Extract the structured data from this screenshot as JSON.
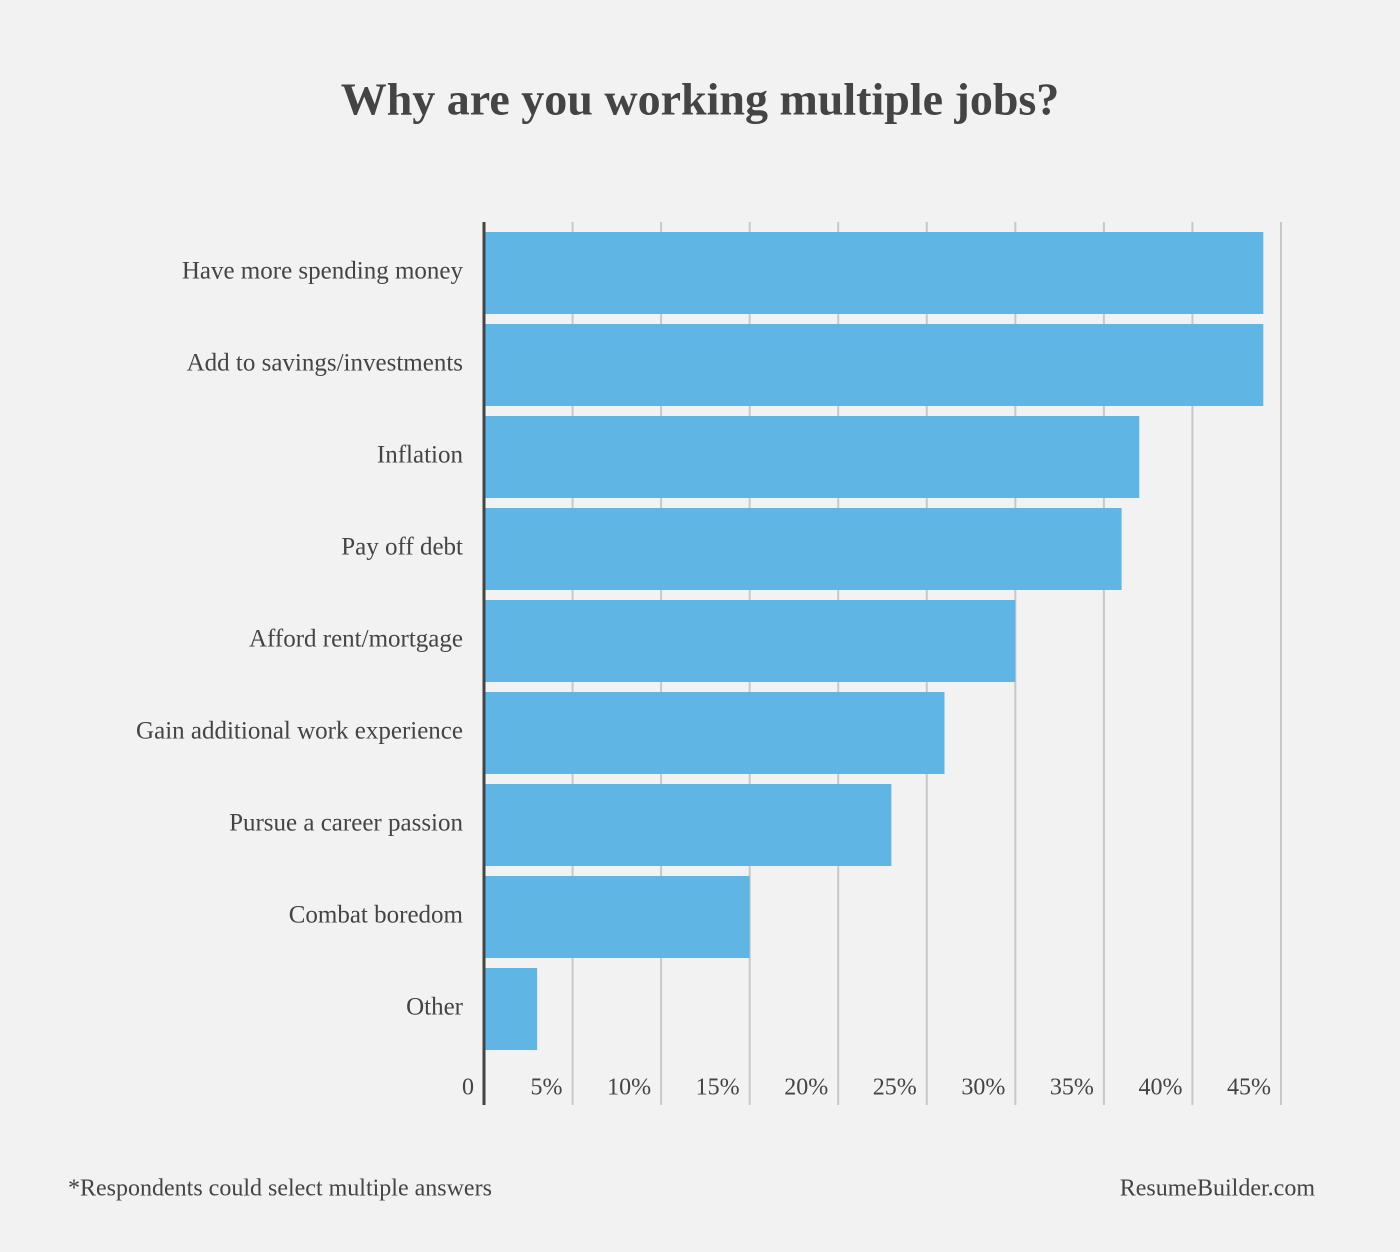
{
  "chart_data": {
    "type": "hbar",
    "title": "Why are you working multiple jobs?",
    "categories": [
      "Have more spending money",
      "Add to savings/investments",
      "Inflation",
      "Pay off debt",
      "Afford rent/mortgage",
      "Gain additional work experience",
      "Pursue a career passion",
      "Combat boredom",
      "Other"
    ],
    "values": [
      44,
      44,
      37,
      36,
      30,
      26,
      23,
      15,
      3
    ],
    "color": "#5fb6e4",
    "xlim": [
      0,
      45
    ],
    "xticks": [
      0,
      {
        "value": 5,
        "label": "5%"
      },
      {
        "value": 10,
        "label": "10%"
      },
      {
        "value": 15,
        "label": "15%"
      },
      {
        "value": 20,
        "label": "20%"
      },
      {
        "value": 25,
        "label": "25%"
      },
      {
        "value": 30,
        "label": "30%"
      },
      {
        "value": 35,
        "label": "35%"
      },
      {
        "value": 40,
        "label": "40%"
      },
      {
        "value": 45,
        "label": "45%"
      }
    ],
    "grid": true,
    "footnote": "*Respondents could select multiple answers",
    "source": "ResumeBuilder.com"
  }
}
